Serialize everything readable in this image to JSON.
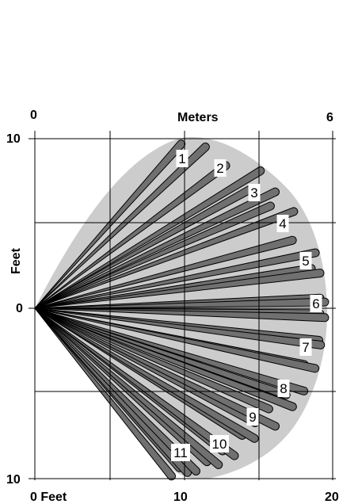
{
  "axes": {
    "top_unit": "Meters",
    "top_left_value": "0",
    "top_right_value": "6",
    "left_unit": "Feet",
    "left_top_value": "10",
    "left_middle_value": "0",
    "left_bottom_value": "10",
    "bottom_left_value": "0 Feet",
    "bottom_middle_value": "10",
    "bottom_right_value": "20"
  },
  "zones": [
    {
      "label": "1"
    },
    {
      "label": "2"
    },
    {
      "label": "3"
    },
    {
      "label": "4"
    },
    {
      "label": "5"
    },
    {
      "label": "6"
    },
    {
      "label": "7"
    },
    {
      "label": "8"
    },
    {
      "label": "9"
    },
    {
      "label": "10"
    },
    {
      "label": "11"
    }
  ],
  "colors": {
    "coverage_fill": "#cccccc",
    "beam_fill": "#707070",
    "beam_stroke": "#000000",
    "grid": "#000000"
  }
}
